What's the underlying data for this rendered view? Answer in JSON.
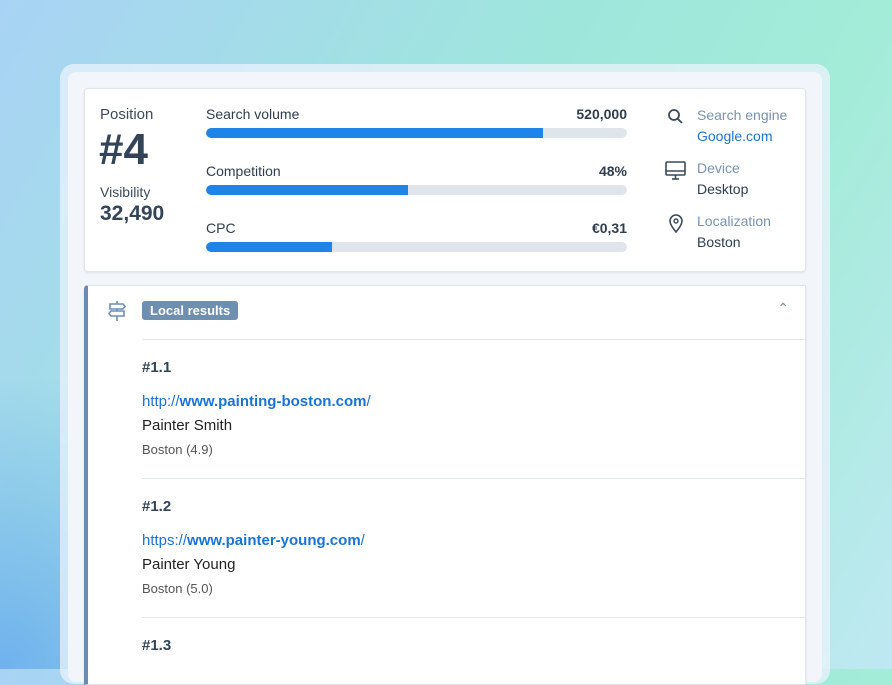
{
  "summary": {
    "position_label": "Position",
    "position_value": "#4",
    "visibility_label": "Visibility",
    "visibility_value": "32,490"
  },
  "metrics": [
    {
      "label": "Search volume",
      "value": "520,000",
      "fill_percent": 80
    },
    {
      "label": "Competition",
      "value": "48%",
      "fill_percent": 48
    },
    {
      "label": "CPC",
      "value": "€0,31",
      "fill_percent": 30
    }
  ],
  "info": [
    {
      "icon": "search-icon",
      "label": "Search engine",
      "value": "Google.com"
    },
    {
      "icon": "monitor-icon",
      "label": "Device",
      "value": "Desktop"
    },
    {
      "icon": "map-pin-icon",
      "label": "Localization",
      "value": "Boston"
    }
  ],
  "local": {
    "badge": "Local results",
    "icon": "signpost-icon",
    "results": [
      {
        "rank": "#1.1",
        "url_prefix": "http://",
        "url_domain": "www.painting-boston.com",
        "url_suffix": "/",
        "name": "Painter Smith",
        "location": "Boston (4.9)"
      },
      {
        "rank": "#1.2",
        "url_prefix": "https://",
        "url_domain": "www.painter-young.com",
        "url_suffix": "/",
        "name": "Painter Young",
        "location": "Boston (5.0)"
      },
      {
        "rank": "#1.3"
      }
    ]
  },
  "colors": {
    "accent": "#1f84e8",
    "link": "#1a74d6",
    "badge": "#6e8fb0"
  }
}
